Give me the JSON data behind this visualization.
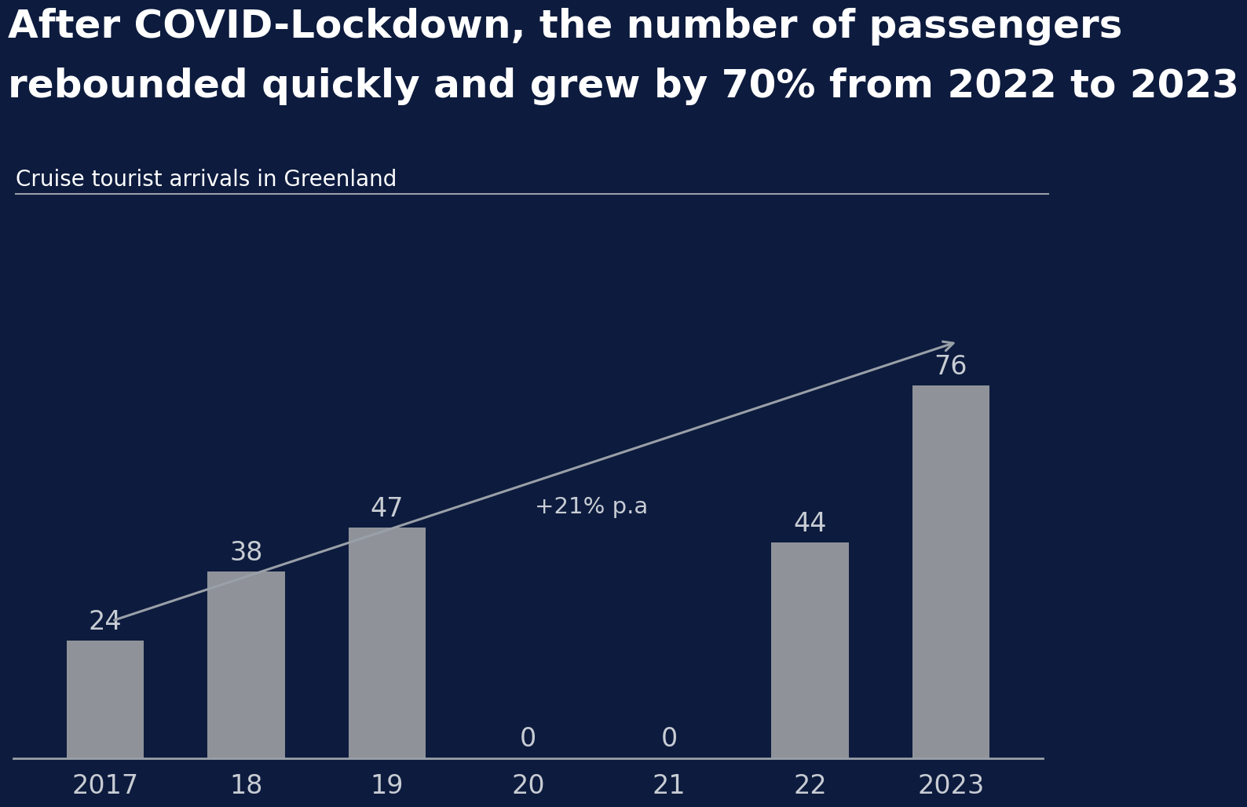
{
  "title_line1": "After COVID-Lockdown, the number of passengers",
  "title_line2": "rebounded quickly and grew by 70% from 2022 to 2023",
  "subtitle": "Cruise tourist arrivals in Greenland",
  "categories": [
    "2017",
    "18",
    "19",
    "20",
    "21",
    "22",
    "2023"
  ],
  "values": [
    24,
    38,
    47,
    0,
    0,
    44,
    76
  ],
  "bar_color": "#8f9399",
  "background_color": "#0d1b3e",
  "text_color": "#ffffff",
  "label_color": "#c8cdd4",
  "arrow_color": "#9aa0a8",
  "trend_label": "+21% p.a",
  "bar_width": 0.55,
  "ylim": [
    0,
    90
  ]
}
